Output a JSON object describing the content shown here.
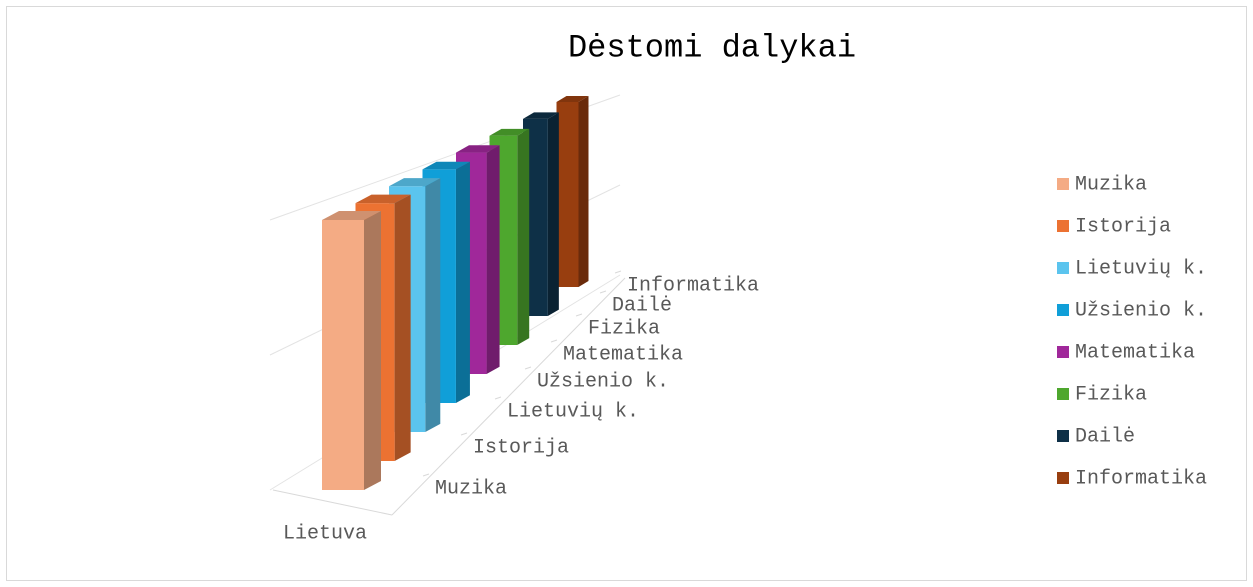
{
  "chart_data": {
    "type": "bar3d",
    "title": "Dėstomi dalykai",
    "categories": [
      "Lietuva"
    ],
    "series": [
      {
        "name": "Muzika",
        "color": "#f4ab84",
        "values": [
          2
        ]
      },
      {
        "name": "Istorija",
        "color": "#ec7232",
        "values": [
          2
        ]
      },
      {
        "name": "Lietuvių k.",
        "color": "#5bc4ee",
        "values": [
          2
        ]
      },
      {
        "name": "Užsienio k.",
        "color": "#109fd8",
        "values": [
          2
        ]
      },
      {
        "name": "Matematika",
        "color": "#a0289a",
        "values": [
          2
        ]
      },
      {
        "name": "Fizika",
        "color": "#4ea72e",
        "values": [
          2
        ]
      },
      {
        "name": "Dailė",
        "color": "#0e3047",
        "values": [
          2
        ]
      },
      {
        "name": "Informatika",
        "color": "#983e0f",
        "values": [
          2
        ]
      }
    ],
    "ylim": [
      0,
      2
    ],
    "yticks": [
      0,
      1,
      2
    ],
    "grid": true,
    "legend": "right"
  }
}
